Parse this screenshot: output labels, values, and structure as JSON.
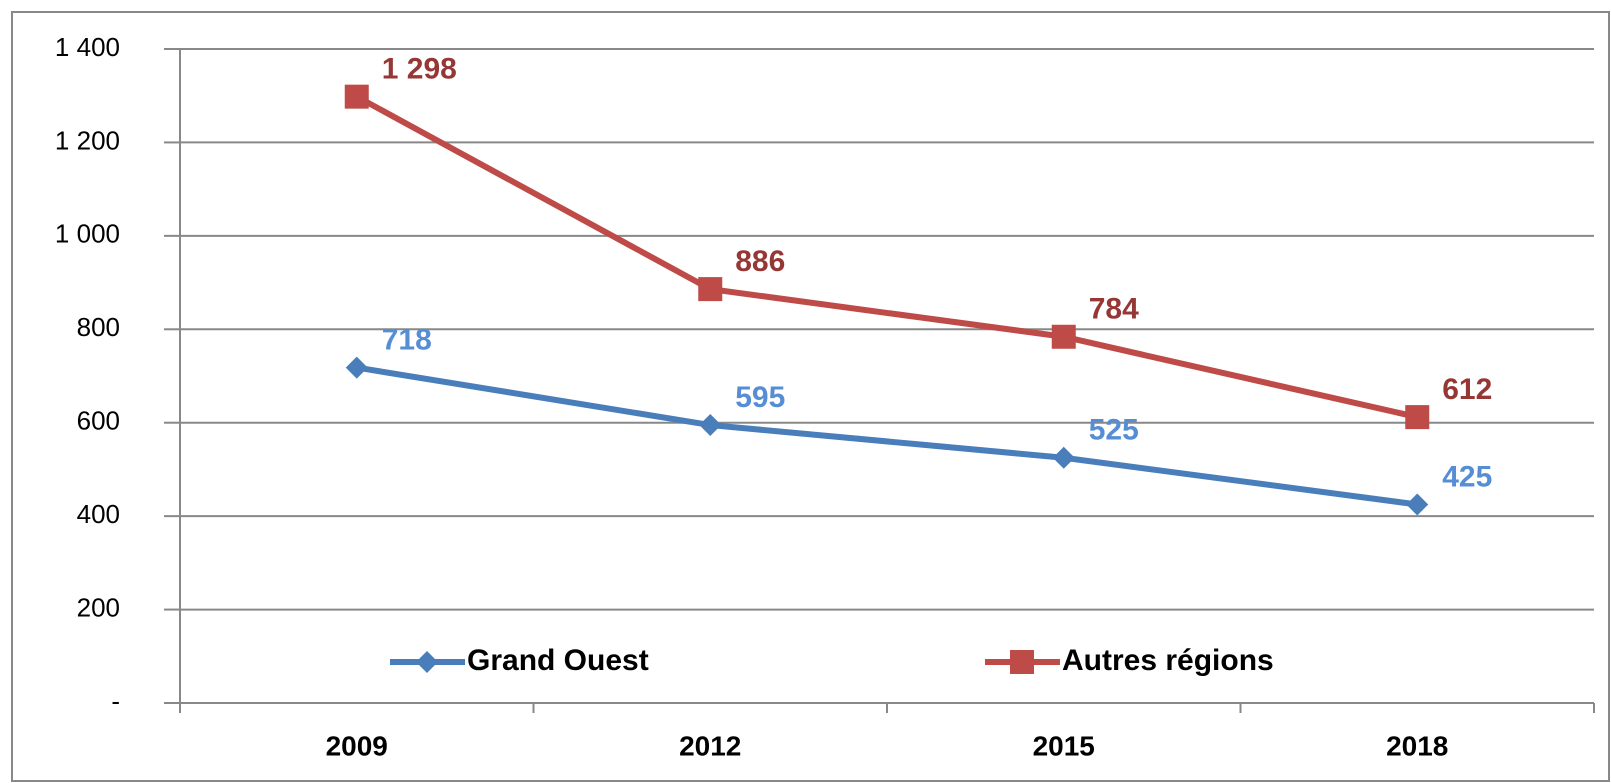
{
  "chart_data": {
    "type": "line",
    "categories": [
      "2009",
      "2012",
      "2015",
      "2018"
    ],
    "series": [
      {
        "name": "Grand Ouest",
        "color": "#4a7ebb",
        "label_color": "#558ed5",
        "marker": "diamond",
        "values": [
          718,
          595,
          525,
          425
        ]
      },
      {
        "name": "Autres régions",
        "color": "#be4b48",
        "label_color": "#953735",
        "marker": "square",
        "values": [
          1298,
          886,
          784,
          612
        ],
        "value_labels": [
          "1 298",
          "886",
          "784",
          "612"
        ]
      }
    ],
    "ylim": [
      0,
      1400
    ],
    "yticks": [
      {
        "value": 0,
        "label": "-"
      },
      200,
      400,
      600,
      800,
      {
        "value": 1000,
        "label": "1 000"
      },
      {
        "value": 1200,
        "label": "1 200"
      },
      {
        "value": 1400,
        "label": "1 400"
      }
    ],
    "grid": true,
    "legend": "bottom"
  }
}
